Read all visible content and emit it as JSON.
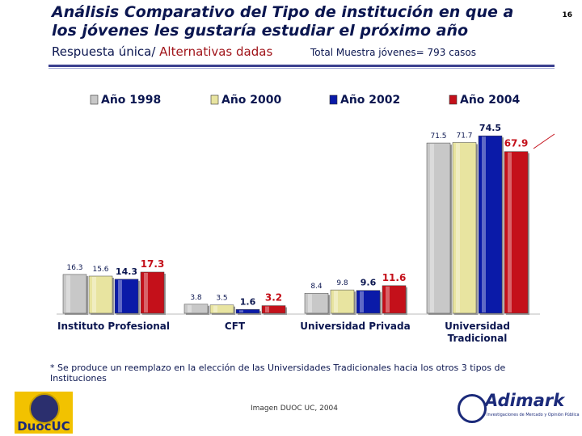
{
  "header": {
    "title": "Análisis Comparativo del Tipo de institución en que a los jóvenes les gustaría estudiar el próximo año",
    "page_number": "16",
    "subtitle_main": "Respuesta única/",
    "subtitle_alt": "Alternativas dadas",
    "sample": "Total Muestra jóvenes= 793 casos"
  },
  "colors": {
    "y1998": "#c8c8c8",
    "y2000": "#e8e4a0",
    "y2002": "#0a1aa8",
    "y2004": "#c4101a",
    "title": "#0b1650"
  },
  "chart_data": {
    "type": "bar",
    "categories": [
      "Instituto Profesional",
      "CFT",
      "Universidad Privada",
      "Universidad Tradicional"
    ],
    "series": [
      {
        "name": "Año 1998",
        "values": [
          16.3,
          3.8,
          8.4,
          71.5
        ]
      },
      {
        "name": "Año 2000",
        "values": [
          15.6,
          3.5,
          9.8,
          71.7
        ]
      },
      {
        "name": "Año 2002",
        "values": [
          14.3,
          1.6,
          9.6,
          74.5
        ]
      },
      {
        "name": "Año 2004",
        "values": [
          17.3,
          3.2,
          11.6,
          67.9
        ]
      }
    ],
    "title": "",
    "xlabel": "",
    "ylabel": "",
    "ylim": [
      0,
      80
    ],
    "grid": false,
    "legend": "top"
  },
  "footer": {
    "note": "* Se produce un reemplazo en la elección de las Universidades Tradicionales hacia los otros 3 tipos de Instituciones",
    "credit": "Imagen DUOC UC, 2004",
    "logo_left": "DuocUC",
    "logo_right": "Adimark",
    "logo_right_tag": "Investigaciones de Mercado y Opinión Pública"
  }
}
